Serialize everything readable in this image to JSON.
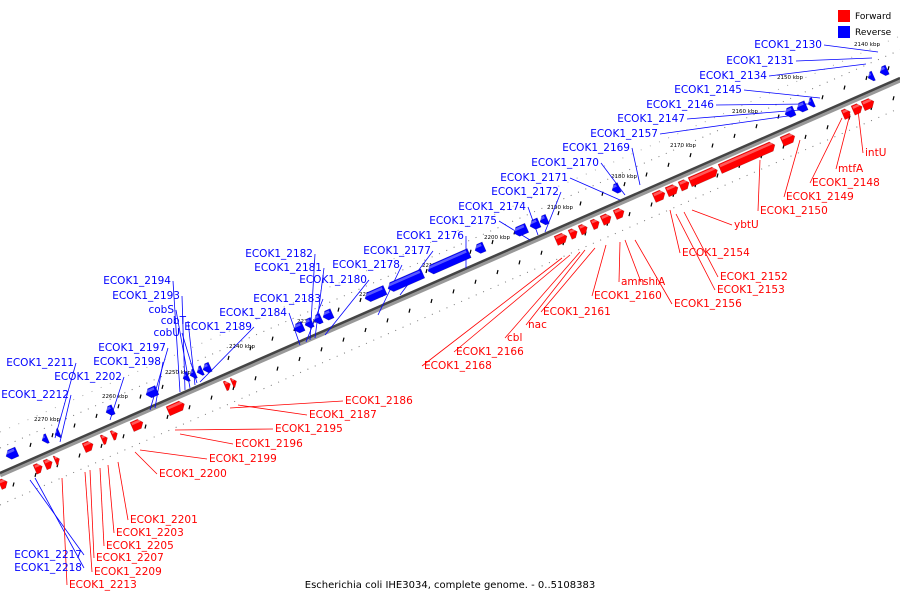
{
  "title": "Escherichia coli IHE3034, complete genome. - 0..5108383",
  "legend": [
    {
      "label": "Forward",
      "color": "#ff0000"
    },
    {
      "label": "Reverse",
      "color": "#0000ff"
    }
  ],
  "colors": {
    "forward": "#ff0000",
    "reverse": "#0000ff",
    "backbone": "#555555"
  },
  "ticks": [
    "2140 kbp",
    "2150 kbp",
    "2160 kbp",
    "2170 kbp",
    "2180 kbp",
    "2190 kbp",
    "2200 kbp",
    "2210 kbp",
    "2220 kbp",
    "2230 kbp",
    "2240 kbp",
    "2250 kbp",
    "2260 kbp",
    "2270 kbp"
  ],
  "reverse_labels": [
    "ECOK1_2130",
    "ECOK1_2131",
    "ECOK1_2134",
    "ECOK1_2145",
    "ECOK1_2146",
    "ECOK1_2147",
    "ECOK1_2157",
    "ECOK1_2169",
    "ECOK1_2170",
    "ECOK1_2171",
    "ECOK1_2172",
    "ECOK1_2174",
    "ECOK1_2175",
    "ECOK1_2176",
    "ECOK1_2177",
    "ECOK1_2178",
    "ECOK1_2180",
    "ECOK1_2181",
    "ECOK1_2182",
    "ECOK1_2183",
    "ECOK1_2184",
    "ECOK1_2189",
    "ECOK1_2194",
    "ECOK1_2193",
    "cobS",
    "cobT",
    "cobU",
    "ECOK1_2197",
    "ECOK1_2198",
    "ECOK1_2202",
    "ECOK1_2211",
    "ECOK1_2212",
    "ECOK1_2217",
    "ECOK1_2218"
  ],
  "forward_labels": [
    "intU",
    "mtfA",
    "ECOK1_2148",
    "ECOK1_2149",
    "ECOK1_2150",
    "ybtU",
    "ECOK1_2154",
    "ECOK1_2152",
    "ECOK1_2153",
    "ECOK1_2156",
    "shiA",
    "amn",
    "ECOK1_2160",
    "ECOK1_2161",
    "nac",
    "cbl",
    "ECOK1_2166",
    "ECOK1_2168",
    "ECOK1_2186",
    "ECOK1_2187",
    "ECOK1_2195",
    "ECOK1_2196",
    "ECOK1_2199",
    "ECOK1_2200",
    "ECOK1_2201",
    "ECOK1_2203",
    "ECOK1_2205",
    "ECOK1_2207",
    "ECOK1_2209",
    "ECOK1_2213"
  ]
}
